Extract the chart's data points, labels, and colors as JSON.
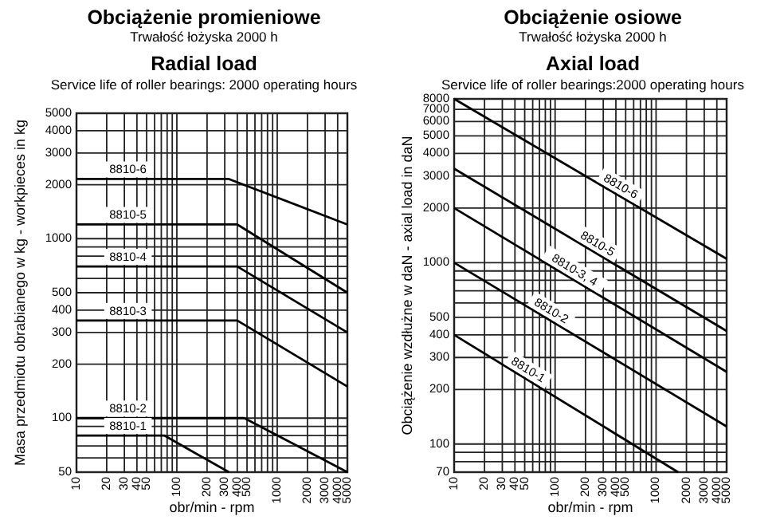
{
  "chart_data": [
    {
      "type": "line",
      "title": "Obciążenie promieniowe",
      "subtitle": "Trwałość łożyska 2000 h",
      "annotations": [
        "Radial load",
        "Service life of roller bearings: 2000 operating hours"
      ],
      "xlabel": "obr/min - rpm",
      "ylabel": "Masa przedmiotu obrabianego w kg  -  workpieces in kg",
      "log": "xy",
      "grid": true,
      "xlim": [
        10,
        5000
      ],
      "ylim": [
        50,
        5000
      ],
      "xticks": [
        10,
        20,
        30,
        40,
        50,
        {
          "value": 60,
          "label": null
        },
        {
          "value": 70,
          "label": null
        },
        {
          "value": 80,
          "label": null
        },
        {
          "value": 90,
          "label": null
        },
        100,
        200,
        300,
        400,
        500,
        {
          "value": 600,
          "label": null
        },
        {
          "value": 700,
          "label": null
        },
        {
          "value": 800,
          "label": null
        },
        {
          "value": 900,
          "label": null
        },
        1000,
        2000,
        3000,
        4000,
        5000
      ],
      "yticks": [
        50,
        {
          "value": 60,
          "label": null
        },
        {
          "value": 70,
          "label": null
        },
        {
          "value": 80,
          "label": null
        },
        {
          "value": 90,
          "label": null
        },
        100,
        200,
        300,
        400,
        500,
        {
          "value": 600,
          "label": null
        },
        {
          "value": 700,
          "label": null
        },
        {
          "value": 800,
          "label": null
        },
        {
          "value": 900,
          "label": null
        },
        1000,
        2000,
        3000,
        4000,
        5000
      ],
      "series": [
        {
          "name": "8810-6",
          "color": "#000000",
          "x": [
            10,
            330,
            5000
          ],
          "values": [
            2150,
            2150,
            1200
          ]
        },
        {
          "name": "8810-5",
          "color": "#000000",
          "x": [
            10,
            400,
            5000
          ],
          "values": [
            1200,
            1200,
            500
          ]
        },
        {
          "name": "8810-4",
          "color": "#000000",
          "x": [
            10,
            400,
            5000
          ],
          "values": [
            700,
            700,
            300
          ]
        },
        {
          "name": "8810-3",
          "color": "#000000",
          "x": [
            10,
            400,
            5000
          ],
          "values": [
            350,
            350,
            150
          ]
        },
        {
          "name": "8810-2",
          "color": "#000000",
          "x": [
            10,
            470,
            5000
          ],
          "values": [
            100,
            100,
            50
          ]
        },
        {
          "name": "8810-1",
          "color": "#000000",
          "x": [
            10,
            75,
            330
          ],
          "values": [
            80,
            80,
            50
          ]
        }
      ]
    },
    {
      "type": "line",
      "title": "Obciążenie osiowe",
      "subtitle": "Trwałość łożyska 2000 h",
      "annotations": [
        "Axial load",
        "Service life of roller bearings:2000 operating hours"
      ],
      "xlabel": "obr/min - rpm",
      "ylabel": "Obciążenie wzdłużne w daN - axial load in daN",
      "log": "xy",
      "grid": true,
      "xlim": [
        10,
        5000
      ],
      "ylim": [
        70,
        8000
      ],
      "xticks": [
        10,
        20,
        30,
        40,
        50,
        {
          "value": 60,
          "label": null
        },
        {
          "value": 70,
          "label": null
        },
        {
          "value": 80,
          "label": null
        },
        {
          "value": 90,
          "label": null
        },
        100,
        200,
        300,
        400,
        500,
        {
          "value": 600,
          "label": null
        },
        {
          "value": 700,
          "label": null
        },
        {
          "value": 800,
          "label": null
        },
        {
          "value": 900,
          "label": null
        },
        1000,
        2000,
        3000,
        4000,
        5000
      ],
      "yticks": [
        70,
        {
          "value": 80,
          "label": null
        },
        {
          "value": 90,
          "label": null
        },
        100,
        200,
        300,
        400,
        500,
        {
          "value": 600,
          "label": null
        },
        {
          "value": 700,
          "label": null
        },
        {
          "value": 800,
          "label": null
        },
        {
          "value": 900,
          "label": null
        },
        1000,
        2000,
        3000,
        4000,
        5000,
        6000,
        7000,
        8000
      ],
      "series": [
        {
          "name": "8810-6",
          "color": "#000000",
          "x": [
            10,
            5000
          ],
          "values": [
            8000,
            1050
          ]
        },
        {
          "name": "8810-5",
          "color": "#000000",
          "x": [
            10,
            5000
          ],
          "values": [
            3300,
            420
          ]
        },
        {
          "name": "8810-3, 4",
          "color": "#000000",
          "x": [
            10,
            5000
          ],
          "values": [
            2000,
            250
          ]
        },
        {
          "name": "8810-2",
          "color": "#000000",
          "x": [
            10,
            5000
          ],
          "values": [
            1000,
            125
          ]
        },
        {
          "name": "8810-1",
          "color": "#000000",
          "x": [
            10,
            1650
          ],
          "values": [
            400,
            70
          ]
        }
      ]
    }
  ]
}
